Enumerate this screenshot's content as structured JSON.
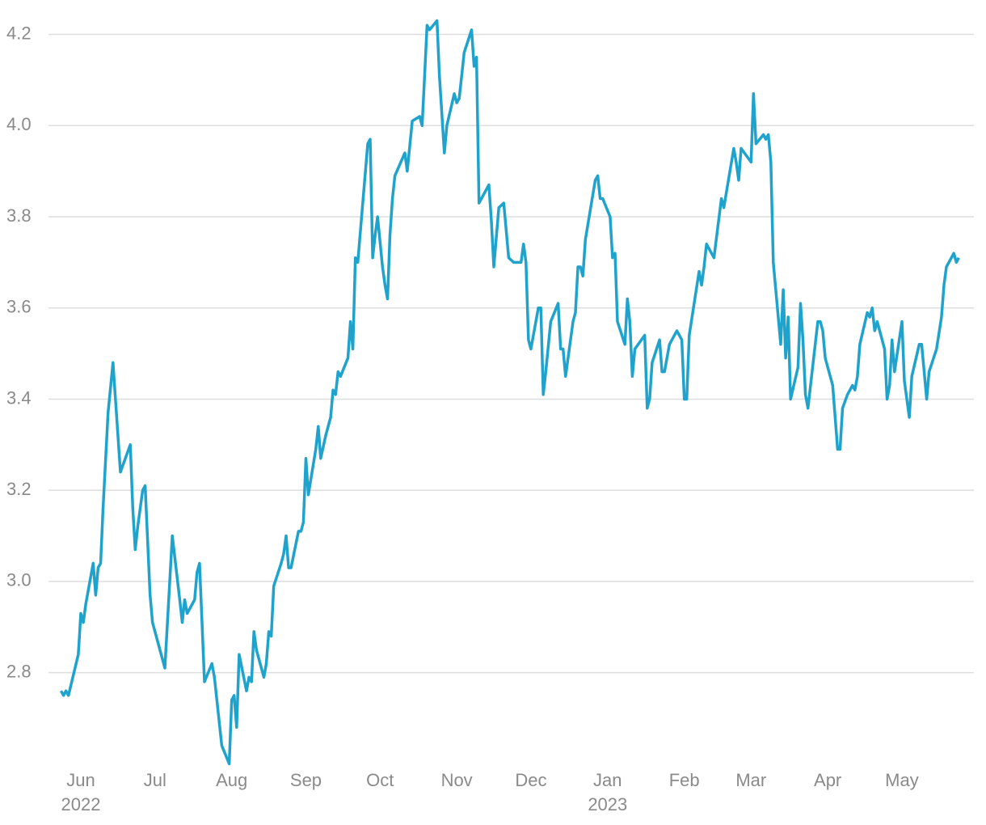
{
  "chart_data": {
    "type": "line",
    "x": [
      -8,
      -7,
      -6,
      -5,
      -1,
      0,
      1,
      2,
      5,
      6,
      7,
      8,
      9,
      11,
      13,
      16,
      20,
      21,
      22,
      23,
      25,
      26,
      28,
      29,
      34,
      37,
      40,
      41,
      42,
      43,
      46,
      47,
      48,
      50,
      53,
      54,
      57,
      60,
      61,
      62,
      63,
      64,
      67,
      68,
      69,
      70,
      71,
      74,
      75,
      76,
      77,
      78,
      81,
      82,
      83,
      84,
      85,
      88,
      89,
      90,
      91,
      92,
      95,
      96,
      97,
      99,
      101,
      102,
      103,
      104,
      105,
      108,
      109,
      110,
      111,
      112,
      116,
      117,
      118,
      119,
      120,
      122,
      123,
      124,
      125,
      126,
      127,
      131,
      132,
      134,
      137,
      138,
      139,
      140,
      141,
      144,
      145,
      147,
      148,
      151,
      152,
      153,
      154,
      155,
      158,
      159,
      160,
      161,
      165,
      166,
      167,
      169,
      171,
      173,
      175,
      178,
      179,
      180,
      181,
      182,
      185,
      186,
      187,
      188,
      190,
      193,
      194,
      195,
      196,
      199,
      200,
      201,
      202,
      203,
      204,
      208,
      209,
      210,
      211,
      214,
      215,
      216,
      217,
      220,
      221,
      222,
      223,
      224,
      228,
      229,
      230,
      231,
      234,
      235,
      236,
      238,
      241,
      243,
      244,
      245,
      246,
      250,
      251,
      252,
      253,
      256,
      259,
      260,
      264,
      265,
      266,
      267,
      271,
      272,
      273,
      276,
      277,
      278,
      279,
      280,
      283,
      284,
      285,
      286,
      287,
      290,
      291,
      292,
      293,
      294,
      298,
      299,
      300,
      301,
      304,
      306,
      307,
      308,
      310,
      312,
      313,
      314,
      315,
      318,
      319,
      320,
      321,
      322,
      325,
      326,
      327,
      328,
      329,
      332,
      333,
      335,
      336,
      339,
      340,
      342,
      343,
      346,
      348,
      349,
      350,
      353,
      354,
      355
    ],
    "values": [
      2.76,
      2.75,
      2.76,
      2.75,
      2.84,
      2.93,
      2.91,
      2.95,
      3.04,
      2.97,
      3.03,
      3.04,
      3.16,
      3.37,
      3.48,
      3.24,
      3.3,
      3.16,
      3.07,
      3.12,
      3.2,
      3.21,
      2.97,
      2.91,
      2.81,
      3.1,
      2.96,
      2.91,
      2.96,
      2.93,
      2.96,
      3.02,
      3.04,
      2.78,
      2.82,
      2.79,
      2.64,
      2.6,
      2.74,
      2.75,
      2.68,
      2.84,
      2.76,
      2.79,
      2.78,
      2.89,
      2.85,
      2.79,
      2.82,
      2.89,
      2.88,
      2.99,
      3.04,
      3.06,
      3.1,
      3.03,
      3.03,
      3.11,
      3.11,
      3.13,
      3.27,
      3.19,
      3.29,
      3.34,
      3.27,
      3.32,
      3.36,
      3.42,
      3.41,
      3.46,
      3.45,
      3.49,
      3.57,
      3.51,
      3.71,
      3.7,
      3.96,
      3.97,
      3.71,
      3.76,
      3.8,
      3.69,
      3.65,
      3.62,
      3.76,
      3.84,
      3.89,
      3.94,
      3.9,
      4.01,
      4.02,
      4.0,
      4.11,
      4.22,
      4.21,
      4.23,
      4.11,
      3.94,
      4.0,
      4.07,
      4.05,
      4.06,
      4.11,
      4.16,
      4.21,
      4.13,
      4.15,
      3.83,
      3.87,
      3.79,
      3.69,
      3.82,
      3.83,
      3.71,
      3.7,
      3.7,
      3.74,
      3.7,
      3.53,
      3.51,
      3.6,
      3.6,
      3.41,
      3.46,
      3.57,
      3.61,
      3.51,
      3.51,
      3.45,
      3.57,
      3.59,
      3.69,
      3.69,
      3.67,
      3.75,
      3.88,
      3.89,
      3.84,
      3.84,
      3.8,
      3.71,
      3.72,
      3.57,
      3.52,
      3.62,
      3.57,
      3.45,
      3.51,
      3.54,
      3.38,
      3.4,
      3.48,
      3.53,
      3.46,
      3.46,
      3.52,
      3.55,
      3.53,
      3.4,
      3.4,
      3.54,
      3.68,
      3.65,
      3.69,
      3.74,
      3.71,
      3.84,
      3.82,
      3.95,
      3.92,
      3.88,
      3.95,
      3.92,
      4.07,
      3.96,
      3.98,
      3.97,
      3.98,
      3.92,
      3.7,
      3.52,
      3.64,
      3.49,
      3.58,
      3.4,
      3.47,
      3.61,
      3.53,
      3.41,
      3.38,
      3.57,
      3.57,
      3.55,
      3.49,
      3.43,
      3.29,
      3.29,
      3.38,
      3.41,
      3.43,
      3.42,
      3.45,
      3.52,
      3.59,
      3.58,
      3.6,
      3.55,
      3.57,
      3.51,
      3.4,
      3.43,
      3.53,
      3.46,
      3.57,
      3.44,
      3.36,
      3.45,
      3.52,
      3.52,
      3.4,
      3.46,
      3.51,
      3.58,
      3.65,
      3.69,
      3.72,
      3.7,
      3.71
    ],
    "color": "#1fa3cd",
    "xlim": [
      -11.44,
      361.1
    ],
    "ylim": [
      2.59,
      4.24
    ],
    "yticks": [
      2.8,
      {
        "value": 3,
        "label": "3.0"
      },
      3.2,
      3.4,
      3.6,
      3.8,
      {
        "value": 4,
        "label": "4.0"
      },
      4.2
    ],
    "xticks": [
      {
        "value": 0,
        "label": "Jun"
      },
      {
        "value": 30,
        "label": "Jul"
      },
      {
        "value": 61,
        "label": "Aug"
      },
      {
        "value": 91,
        "label": "Sep"
      },
      {
        "value": 121,
        "label": "Oct"
      },
      {
        "value": 152,
        "label": "Nov"
      },
      {
        "value": 182,
        "label": "Dec"
      },
      {
        "value": 213,
        "label": "Jan"
      },
      {
        "value": 244,
        "label": "Feb"
      },
      {
        "value": 271,
        "label": "Mar"
      },
      {
        "value": 302,
        "label": "Apr"
      },
      {
        "value": 332,
        "label": "May"
      }
    ],
    "xtick_years": [
      {
        "value": 0,
        "label": "2022"
      },
      {
        "value": 213,
        "label": "2023"
      }
    ],
    "grid": true
  }
}
